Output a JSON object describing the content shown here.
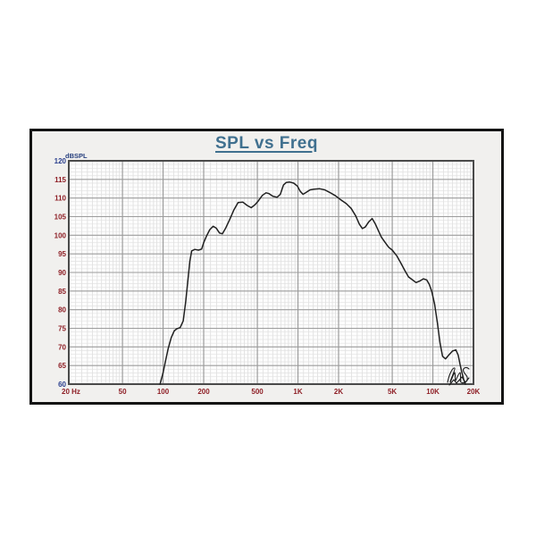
{
  "page": {
    "background": "#ffffff",
    "frame_fill": "#f1f0ee",
    "frame_border": "#141414"
  },
  "chart_data": {
    "type": "line",
    "title": "SPL vs Freq",
    "x_axis": {
      "scale": "log",
      "min": 20,
      "max": 20000,
      "unit": "Hz",
      "ticks": [
        {
          "label": "20 Hz",
          "f": 20,
          "anchor": "start"
        },
        {
          "label": "50",
          "f": 50
        },
        {
          "label": "100",
          "f": 100
        },
        {
          "label": "200",
          "f": 200
        },
        {
          "label": "500",
          "f": 500
        },
        {
          "label": "1K",
          "f": 1000
        },
        {
          "label": "2K",
          "f": 2000
        },
        {
          "label": "5K",
          "f": 5000
        },
        {
          "label": "10K",
          "f": 10000
        },
        {
          "label": "20K",
          "f": 20000
        }
      ]
    },
    "y_axis": {
      "label": "dBSPL",
      "min": 60,
      "max": 120,
      "major_step": 5,
      "minor_step": 1,
      "ticks": [
        {
          "label": "120",
          "value": 120,
          "accent": "blue"
        },
        {
          "label": "115",
          "value": 115,
          "accent": "red"
        },
        {
          "label": "110",
          "value": 110,
          "accent": "red"
        },
        {
          "label": "105",
          "value": 105,
          "accent": "red"
        },
        {
          "label": "100",
          "value": 100,
          "accent": "red"
        },
        {
          "label": "95",
          "value": 95,
          "accent": "red"
        },
        {
          "label": "90",
          "value": 90,
          "accent": "red"
        },
        {
          "label": "85",
          "value": 85,
          "accent": "red"
        },
        {
          "label": "80",
          "value": 80,
          "accent": "red"
        },
        {
          "label": "75",
          "value": 75,
          "accent": "red"
        },
        {
          "label": "70",
          "value": 70,
          "accent": "red"
        },
        {
          "label": "65",
          "value": 65,
          "accent": "red"
        },
        {
          "label": "60",
          "value": 60,
          "accent": "blue"
        }
      ]
    },
    "grid": {
      "on": true,
      "x_major_lines": [
        50,
        100,
        200,
        500,
        1000,
        2000,
        5000,
        10000
      ]
    },
    "legend": "none",
    "logo": "LMS",
    "series": [
      {
        "name": "SPL",
        "color": "#202020",
        "points": [
          [
            95,
            60
          ],
          [
            100,
            63
          ],
          [
            104,
            66
          ],
          [
            109,
            69.5
          ],
          [
            115,
            72.5
          ],
          [
            121,
            74.3
          ],
          [
            127,
            74.9
          ],
          [
            134,
            75.2
          ],
          [
            141,
            77
          ],
          [
            147,
            82
          ],
          [
            153,
            88
          ],
          [
            158,
            93
          ],
          [
            163,
            95.8
          ],
          [
            172,
            96.2
          ],
          [
            183,
            96.0
          ],
          [
            193,
            96.3
          ],
          [
            200,
            98
          ],
          [
            210,
            99.8
          ],
          [
            222,
            101.5
          ],
          [
            235,
            102.4
          ],
          [
            248,
            101.9
          ],
          [
            262,
            100.6
          ],
          [
            275,
            100.4
          ],
          [
            290,
            101.8
          ],
          [
            310,
            104
          ],
          [
            335,
            106.8
          ],
          [
            360,
            108.8
          ],
          [
            390,
            108.9
          ],
          [
            420,
            108.0
          ],
          [
            450,
            107.4
          ],
          [
            480,
            108.2
          ],
          [
            510,
            109.3
          ],
          [
            545,
            110.7
          ],
          [
            580,
            111.4
          ],
          [
            610,
            111.2
          ],
          [
            650,
            110.5
          ],
          [
            700,
            110.2
          ],
          [
            740,
            111.0
          ],
          [
            780,
            113.5
          ],
          [
            820,
            114.2
          ],
          [
            870,
            114.3
          ],
          [
            930,
            114.0
          ],
          [
            990,
            113.2
          ],
          [
            1040,
            111.8
          ],
          [
            1090,
            111.0
          ],
          [
            1150,
            111.5
          ],
          [
            1230,
            112.2
          ],
          [
            1320,
            112.4
          ],
          [
            1450,
            112.5
          ],
          [
            1580,
            112.2
          ],
          [
            1720,
            111.5
          ],
          [
            1900,
            110.6
          ],
          [
            2080,
            109.5
          ],
          [
            2280,
            108.5
          ],
          [
            2480,
            107.2
          ],
          [
            2680,
            105.2
          ],
          [
            2850,
            103.0
          ],
          [
            3000,
            101.8
          ],
          [
            3150,
            102.2
          ],
          [
            3350,
            103.6
          ],
          [
            3550,
            104.5
          ],
          [
            3750,
            103.0
          ],
          [
            3950,
            101.2
          ],
          [
            4150,
            99.5
          ],
          [
            4400,
            98.2
          ],
          [
            4700,
            96.8
          ],
          [
            5000,
            96.0
          ],
          [
            5400,
            94.5
          ],
          [
            5800,
            92.5
          ],
          [
            6200,
            90.5
          ],
          [
            6600,
            88.8
          ],
          [
            7000,
            88.1
          ],
          [
            7500,
            87.3
          ],
          [
            8000,
            87.7
          ],
          [
            8500,
            88.3
          ],
          [
            9000,
            88.0
          ],
          [
            9400,
            86.8
          ],
          [
            9800,
            85.0
          ],
          [
            10300,
            81.5
          ],
          [
            10800,
            76.5
          ],
          [
            11300,
            71.0
          ],
          [
            11800,
            67.5
          ],
          [
            12400,
            66.8
          ],
          [
            13100,
            67.8
          ],
          [
            14000,
            68.9
          ],
          [
            14800,
            69.2
          ],
          [
            15400,
            67.8
          ],
          [
            15900,
            65.3
          ],
          [
            16400,
            63.2
          ],
          [
            16900,
            61.3
          ],
          [
            17400,
            60.0
          ]
        ]
      }
    ],
    "colors": {
      "tick_red": "#8e1f26",
      "tick_blue": "#2b3f8e",
      "axis_label_blue": "#263f7d",
      "grid_minor": "#dcdcdc",
      "grid_major": "#9c9c9c",
      "plot_border": "#4a4a4a",
      "plot_fill": "#fdfdfd",
      "title_color": "#40708f",
      "curve": "#202020"
    }
  }
}
